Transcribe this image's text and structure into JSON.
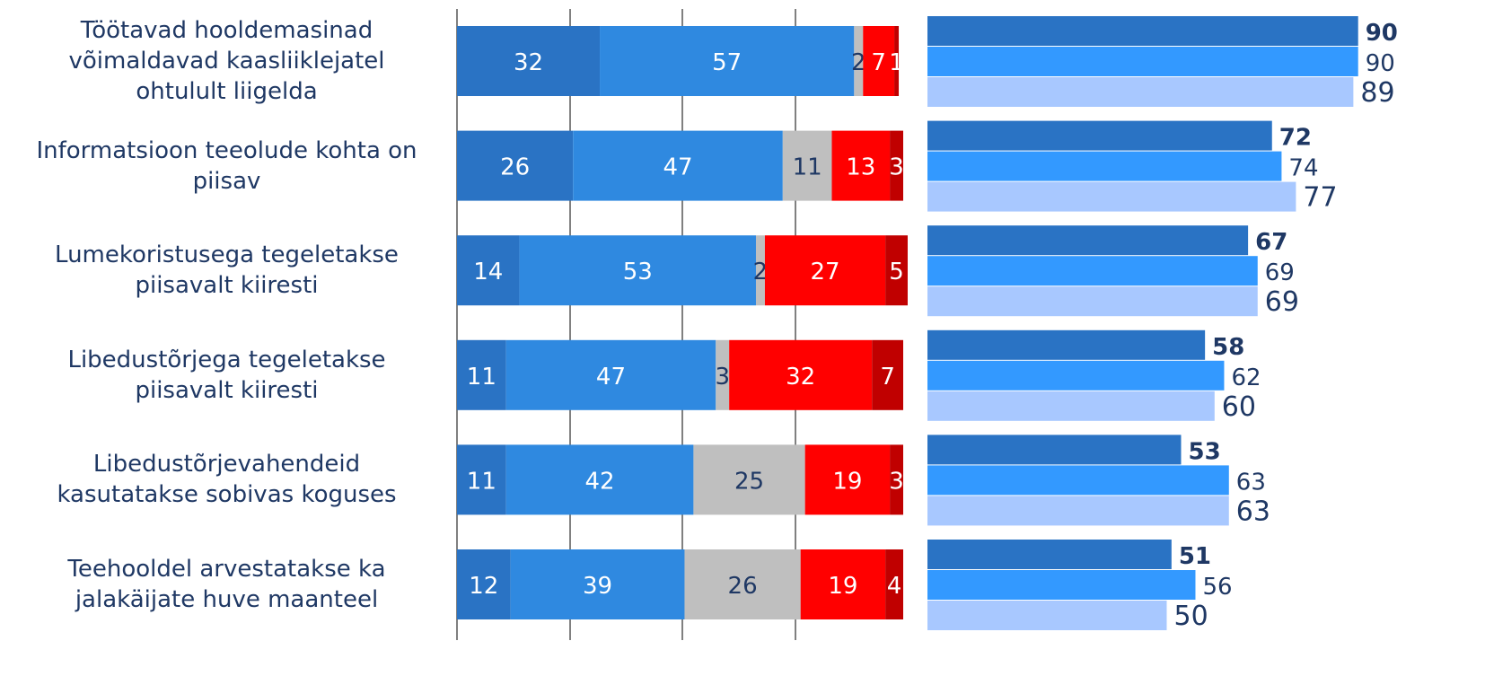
{
  "colors": {
    "stacked": [
      "#2a73c4",
      "#2f89e0",
      "#bfbfbf",
      "#ff0000",
      "#c00000"
    ],
    "right": [
      "#2a73c4",
      "#3399ff",
      "#a8c8ff"
    ],
    "label_dark": "#1f3864",
    "label_white": "#ffffff",
    "gridline": "#808080"
  },
  "chart_data": [
    {
      "type": "bar",
      "orientation": "horizontal",
      "stacked": true,
      "categories": [
        "Töötavad hooldemasinad võimaldavad kaasliiklejatel ohtulult liigelda",
        "Informatsioon teeolude kohta on piisav",
        "Lumekoristusega tegeletakse piisavalt kiiresti",
        "Libedustõrjega tegeletakse piisavalt kiiresti",
        "Libedustõrjevahendeid kasutatakse sobivas koguses",
        "Teehooldel arvestatakse ka jalakäijate huve maanteel"
      ],
      "category_lines": [
        [
          "Töötavad hooldemasinad",
          "võimaldavad kaasliiklejatel",
          "ohtulult liigelda"
        ],
        [
          "Informatsioon teeolude kohta on",
          "piisav"
        ],
        [
          "Lumekoristusega tegeletakse",
          "piisavalt kiiresti"
        ],
        [
          "Libedustõrjega tegeletakse",
          "piisavalt kiiresti"
        ],
        [
          "Libedustõrjevahendeid",
          "kasutatakse sobivas koguses"
        ],
        [
          "Teehooldel arvestatakse ka",
          "jalakäijate huve maanteel"
        ]
      ],
      "series": [
        {
          "values": [
            32,
            26,
            14,
            11,
            11,
            12
          ]
        },
        {
          "values": [
            57,
            47,
            53,
            47,
            42,
            39
          ]
        },
        {
          "values": [
            2,
            11,
            2,
            3,
            25,
            26
          ]
        },
        {
          "values": [
            7,
            13,
            27,
            32,
            19,
            19
          ]
        },
        {
          "values": [
            1,
            3,
            5,
            7,
            3,
            4
          ]
        }
      ],
      "xlim": [
        0,
        100
      ],
      "grid": true
    },
    {
      "type": "bar",
      "orientation": "horizontal",
      "series": [
        {
          "values": [
            90,
            72,
            67,
            58,
            53,
            51
          ]
        },
        {
          "values": [
            90,
            74,
            69,
            62,
            63,
            56
          ]
        },
        {
          "values": [
            89,
            77,
            69,
            60,
            63,
            50
          ]
        }
      ],
      "xlim": [
        0,
        100
      ],
      "grid": false
    }
  ]
}
